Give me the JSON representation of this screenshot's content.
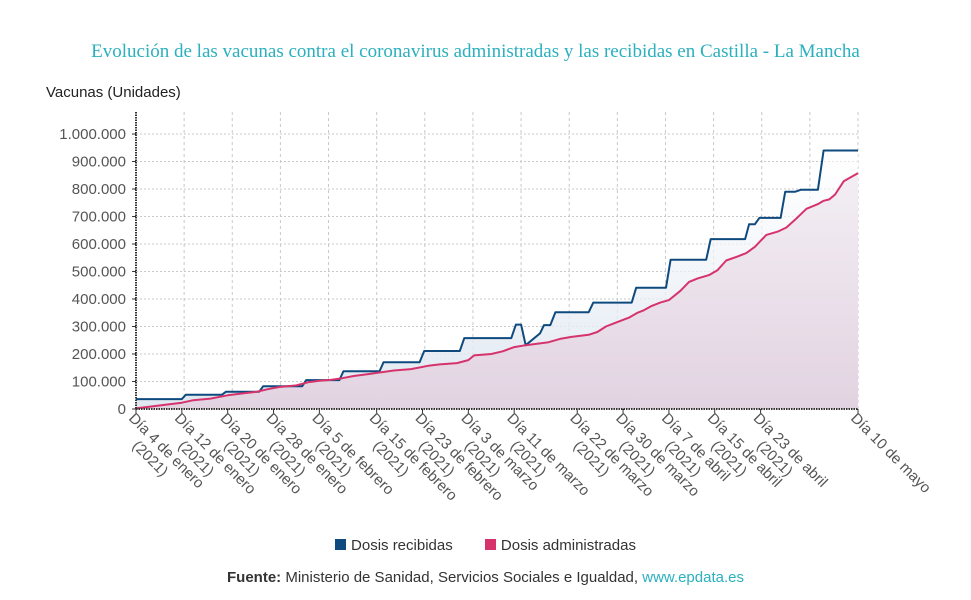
{
  "chart_data": {
    "type": "area",
    "title": "Evolución de las vacunas contra el coronavirus administradas y las recibidas en Castilla - La Mancha",
    "ylabel": "Vacunas (Unidades)",
    "xlabel": "",
    "ylim": [
      0,
      1000000
    ],
    "yticks": [
      0,
      100000,
      200000,
      300000,
      400000,
      500000,
      600000,
      700000,
      800000,
      900000,
      1000000
    ],
    "ytick_labels": [
      "0",
      "100.000",
      "200.000",
      "300.000",
      "400.000",
      "500.000",
      "600.000",
      "700.000",
      "800.000",
      "900.000",
      "1.000.000"
    ],
    "xlim_days": [
      0,
      126
    ],
    "x_tick_days": [
      0,
      8,
      16,
      24,
      32,
      42,
      50,
      58,
      66,
      77,
      85,
      93,
      101,
      109,
      126
    ],
    "x_tick_labels": [
      "Día 4 de enero (2021)",
      "Día 12 de enero (2021)",
      "Día 20 de enero (2021)",
      "Día 28 de enero (2021)",
      "Día 5 de febrero (2021)",
      "Día 15 de febrero (2021)",
      "Día 23 de febrero (2021)",
      "Día 3 de marzo (2021)",
      "Día 11 de marzo (2021)",
      "Día 22 de marzo (2021)",
      "Día 30 de marzo (2021)",
      "Día 7 de abril (2021)",
      "Día 15 de abril (2021)",
      "Día 23 de abril (2021)",
      "Día 10 de mayo"
    ],
    "grid": true,
    "legend_position": "bottom",
    "series": [
      {
        "name": "Dosis recibidas",
        "color": "#0e4a7e",
        "points": [
          [
            0,
            36000
          ],
          [
            8,
            36000
          ],
          [
            8.7,
            52000
          ],
          [
            15,
            52000
          ],
          [
            15.7,
            63000
          ],
          [
            21.5,
            63000
          ],
          [
            22.2,
            83000
          ],
          [
            29,
            83000
          ],
          [
            29.7,
            105000
          ],
          [
            35.5,
            105000
          ],
          [
            36.2,
            137000
          ],
          [
            42.5,
            137000
          ],
          [
            43.2,
            170000
          ],
          [
            49.5,
            170000
          ],
          [
            50.3,
            211000
          ],
          [
            56.5,
            211000
          ],
          [
            57.3,
            258000
          ],
          [
            65.5,
            258000
          ],
          [
            66.3,
            307000
          ],
          [
            67.2,
            307000
          ],
          [
            68,
            232000
          ],
          [
            70.5,
            275000
          ],
          [
            71.2,
            305000
          ],
          [
            72.3,
            305000
          ],
          [
            73.2,
            352000
          ],
          [
            79,
            352000
          ],
          [
            79.8,
            387000
          ],
          [
            86.5,
            387000
          ],
          [
            87.3,
            441000
          ],
          [
            92.5,
            441000
          ],
          [
            93.3,
            543000
          ],
          [
            99.5,
            543000
          ],
          [
            100.3,
            618000
          ],
          [
            106.3,
            618000
          ],
          [
            107,
            672000
          ],
          [
            108,
            672000
          ],
          [
            108.8,
            695000
          ],
          [
            112.5,
            695000
          ],
          [
            113.3,
            790000
          ],
          [
            115,
            790000
          ],
          [
            116,
            797000
          ],
          [
            119,
            797000
          ],
          [
            120,
            940000
          ],
          [
            126,
            940000
          ]
        ]
      },
      {
        "name": "Dosis administradas",
        "color": "#d6336c",
        "points": [
          [
            0,
            2000
          ],
          [
            3,
            10000
          ],
          [
            6,
            18000
          ],
          [
            8,
            23000
          ],
          [
            10,
            32000
          ],
          [
            13,
            38000
          ],
          [
            16,
            50000
          ],
          [
            19,
            58000
          ],
          [
            21,
            62000
          ],
          [
            23,
            72000
          ],
          [
            25,
            80000
          ],
          [
            28,
            86000
          ],
          [
            30,
            97000
          ],
          [
            32,
            103000
          ],
          [
            34,
            106000
          ],
          [
            36,
            112000
          ],
          [
            38,
            120000
          ],
          [
            41,
            128000
          ],
          [
            43,
            134000
          ],
          [
            45,
            140000
          ],
          [
            48,
            145000
          ],
          [
            51,
            157000
          ],
          [
            53,
            162000
          ],
          [
            56,
            167000
          ],
          [
            58,
            178000
          ],
          [
            59,
            195000
          ],
          [
            62,
            200000
          ],
          [
            64,
            210000
          ],
          [
            66,
            225000
          ],
          [
            68,
            232000
          ],
          [
            70,
            237000
          ],
          [
            72,
            243000
          ],
          [
            74,
            255000
          ],
          [
            76,
            262000
          ],
          [
            79,
            270000
          ],
          [
            80.5,
            280000
          ],
          [
            82,
            300000
          ],
          [
            84,
            316000
          ],
          [
            86,
            332000
          ],
          [
            87.5,
            350000
          ],
          [
            88.5,
            358000
          ],
          [
            90,
            375000
          ],
          [
            91.5,
            387000
          ],
          [
            93,
            396000
          ],
          [
            95,
            430000
          ],
          [
            96.5,
            462000
          ],
          [
            98,
            475000
          ],
          [
            100,
            487000
          ],
          [
            101.5,
            505000
          ],
          [
            103,
            540000
          ],
          [
            105,
            555000
          ],
          [
            106.5,
            567000
          ],
          [
            108,
            590000
          ],
          [
            110,
            633000
          ],
          [
            112,
            645000
          ],
          [
            113.5,
            660000
          ],
          [
            115,
            688000
          ],
          [
            117,
            728000
          ],
          [
            119,
            745000
          ],
          [
            120,
            757000
          ],
          [
            121,
            762000
          ],
          [
            122,
            780000
          ],
          [
            123.5,
            828000
          ],
          [
            126,
            858000
          ]
        ]
      }
    ]
  },
  "legend": {
    "items": [
      {
        "label": "Dosis recibidas",
        "color": "#0e4a7e"
      },
      {
        "label": "Dosis administradas",
        "color": "#d6336c"
      }
    ]
  },
  "footer": {
    "source_label": "Fuente:",
    "source_text": "Ministerio de Sanidad, Servicios Sociales e Igualdad,",
    "link_text": "www.epdata.es"
  }
}
